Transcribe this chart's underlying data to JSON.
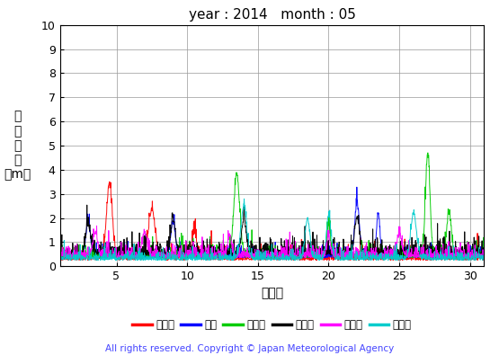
{
  "title": "year : 2014   month : 05",
  "xlabel": "（日）",
  "ylabel_chars": [
    "有",
    "義",
    "波",
    "高",
    "（m）"
  ],
  "xlim": [
    1,
    31
  ],
  "ylim": [
    0,
    10
  ],
  "xticks": [
    5,
    10,
    15,
    20,
    25,
    30
  ],
  "yticks": [
    0,
    1,
    2,
    3,
    4,
    5,
    6,
    7,
    8,
    9,
    10
  ],
  "legend_labels": [
    "上ノ国",
    "唐桑",
    "石廀導",
    "経ヶ導",
    "生月島",
    "屋久島"
  ],
  "legend_colors": [
    "#ff0000",
    "#0000ff",
    "#00cc00",
    "#000000",
    "#ff00ff",
    "#00cccc"
  ],
  "background_color": "#ffffff",
  "copyright_text": "All rights reserved. Copyright © Japan Meteorological Agency",
  "copyright_color": "#4444ff"
}
